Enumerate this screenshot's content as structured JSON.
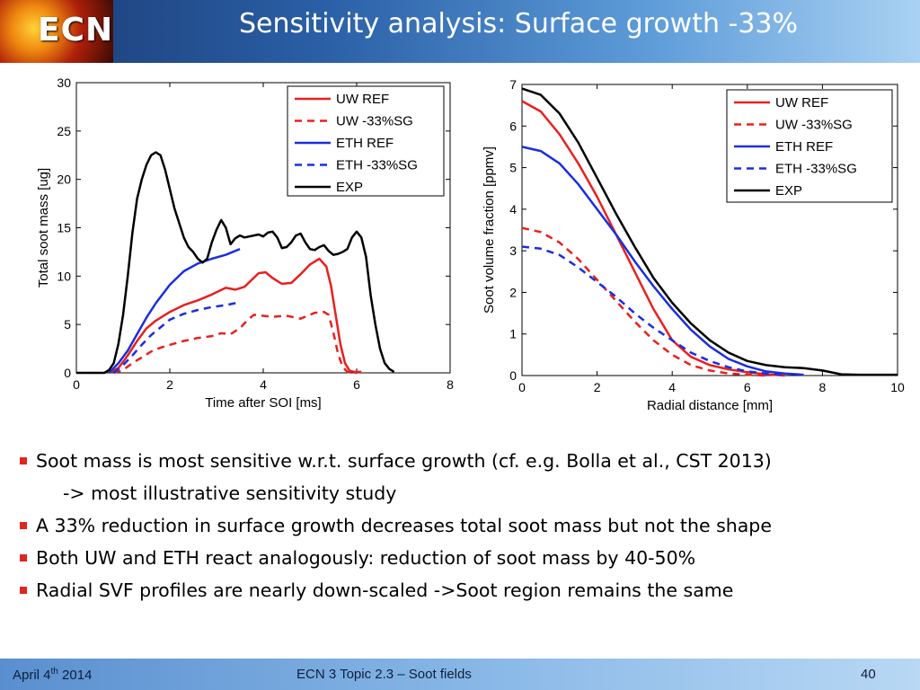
{
  "header": {
    "logo_text": "ECN",
    "title": "Sensitivity analysis: Surface growth -33%"
  },
  "bullets": [
    {
      "text": "Soot mass is most sensitive w.r.t. surface growth (cf. e.g. Bolla et al., CST 2013)",
      "marker": true
    },
    {
      "text": "-> most illustrative sensitivity study",
      "marker": false
    },
    {
      "text": "A 33% reduction in surface growth decreases total soot mass but not the shape",
      "marker": true
    },
    {
      "text": "Both UW and ETH react analogously: reduction of soot mass by 40-50%",
      "marker": true
    },
    {
      "text": "Radial SVF profiles are nearly down-scaled ->Soot region remains the same",
      "marker": true
    }
  ],
  "footer": {
    "date_prefix": "April 4",
    "date_sup": "th",
    "date_suffix": " 2014",
    "topic": "ECN 3 Topic 2.3 – Soot fields",
    "page": "40"
  },
  "colors": {
    "red": "#e8201f",
    "blue": "#1a2ee0",
    "black": "#000000",
    "bullet": "#e0261f"
  },
  "chart_data": [
    {
      "type": "line",
      "xlabel": "Time after SOI [ms]",
      "ylabel": "Total soot mass [ug]",
      "xlim": [
        0,
        8
      ],
      "ylim": [
        0,
        30
      ],
      "xticks": [
        0,
        2,
        4,
        6,
        8
      ],
      "yticks": [
        0,
        5,
        10,
        15,
        20,
        25,
        30
      ],
      "legend_position": "top-right",
      "series": [
        {
          "name": "UW REF",
          "color": "red",
          "dash": false,
          "x": [
            0.7,
            0.9,
            1.1,
            1.3,
            1.5,
            1.7,
            2.0,
            2.3,
            2.6,
            2.9,
            3.2,
            3.4,
            3.6,
            3.75,
            3.9,
            4.05,
            4.2,
            4.4,
            4.6,
            4.8,
            5.0,
            5.2,
            5.35,
            5.45,
            5.55,
            5.65,
            5.75,
            5.85,
            5.95,
            6.1
          ],
          "y": [
            0,
            0.5,
            1.8,
            3.3,
            4.6,
            5.4,
            6.3,
            7.0,
            7.5,
            8.1,
            8.8,
            8.6,
            8.9,
            9.6,
            10.3,
            10.4,
            9.8,
            9.2,
            9.3,
            10.2,
            11.2,
            11.8,
            11.0,
            9.0,
            6.0,
            3.0,
            1.0,
            0.2,
            0.1,
            0.1
          ]
        },
        {
          "name": "UW -33%SG",
          "color": "red",
          "dash": true,
          "x": [
            0.8,
            1.0,
            1.2,
            1.4,
            1.6,
            1.8,
            2.0,
            2.3,
            2.6,
            2.9,
            3.1,
            3.3,
            3.5,
            3.65,
            3.8,
            4.0,
            4.2,
            4.5,
            4.8,
            5.1,
            5.3,
            5.4,
            5.5,
            5.6,
            5.7,
            5.8,
            5.9,
            6.0
          ],
          "y": [
            0,
            0.3,
            1.0,
            1.6,
            2.2,
            2.6,
            2.9,
            3.3,
            3.6,
            3.8,
            4.1,
            4.0,
            4.6,
            5.4,
            6.0,
            5.9,
            5.8,
            5.9,
            5.6,
            6.2,
            6.3,
            6.0,
            4.2,
            2.0,
            0.6,
            0.1,
            0,
            0
          ]
        },
        {
          "name": "ETH REF",
          "color": "blue",
          "dash": false,
          "x": [
            0.7,
            0.9,
            1.1,
            1.3,
            1.5,
            1.7,
            2.0,
            2.3,
            2.6,
            2.9,
            3.2,
            3.5
          ],
          "y": [
            0,
            1.0,
            2.3,
            4.0,
            5.7,
            7.2,
            9.1,
            10.5,
            11.3,
            11.8,
            12.2,
            12.8
          ]
        },
        {
          "name": "ETH -33%SG",
          "color": "blue",
          "dash": true,
          "x": [
            0.8,
            1.0,
            1.2,
            1.4,
            1.6,
            1.8,
            2.0,
            2.3,
            2.6,
            2.9,
            3.2,
            3.5
          ],
          "y": [
            0,
            0.8,
            1.8,
            2.9,
            3.9,
            4.7,
            5.5,
            6.1,
            6.5,
            6.8,
            7.0,
            7.3
          ]
        },
        {
          "name": "EXP",
          "color": "black",
          "dash": false,
          "x": [
            0,
            0.6,
            0.7,
            0.8,
            0.9,
            1.0,
            1.1,
            1.2,
            1.3,
            1.4,
            1.5,
            1.6,
            1.7,
            1.8,
            1.9,
            2.0,
            2.1,
            2.2,
            2.3,
            2.4,
            2.5,
            2.6,
            2.7,
            2.8,
            2.9,
            3.0,
            3.1,
            3.2,
            3.3,
            3.4,
            3.5,
            3.6,
            3.7,
            3.8,
            3.9,
            4.0,
            4.1,
            4.2,
            4.3,
            4.4,
            4.5,
            4.6,
            4.7,
            4.8,
            4.9,
            5.0,
            5.1,
            5.2,
            5.3,
            5.4,
            5.5,
            5.6,
            5.7,
            5.8,
            5.9,
            6.0,
            6.1,
            6.2,
            6.3,
            6.4,
            6.5,
            6.6,
            6.7,
            6.8
          ],
          "y": [
            0,
            0,
            0.3,
            1.0,
            3.0,
            6.0,
            10.0,
            14.5,
            18.0,
            20.0,
            21.5,
            22.5,
            22.8,
            22.5,
            21.0,
            19.0,
            17.0,
            15.5,
            14.0,
            13.0,
            12.5,
            11.8,
            11.4,
            11.8,
            13.5,
            14.8,
            15.8,
            15.0,
            13.3,
            13.9,
            14.2,
            14.0,
            14.1,
            14.2,
            14.3,
            14.1,
            14.5,
            14.6,
            14.0,
            12.9,
            13.0,
            13.5,
            14.2,
            14.4,
            13.5,
            12.8,
            12.7,
            13.0,
            13.2,
            12.6,
            12.2,
            12.3,
            12.5,
            12.8,
            14.0,
            14.6,
            14.0,
            12.0,
            8.0,
            5.0,
            2.5,
            1.0,
            0.4,
            0.1
          ]
        }
      ]
    },
    {
      "type": "line",
      "xlabel": "Radial distance [mm]",
      "ylabel": "Soot volume fraction [ppmv]",
      "xlim": [
        0,
        10
      ],
      "ylim": [
        0,
        7
      ],
      "xticks": [
        0,
        2,
        4,
        6,
        8,
        10
      ],
      "yticks": [
        0,
        1,
        2,
        3,
        4,
        5,
        6,
        7
      ],
      "legend_position": "top-right",
      "series": [
        {
          "name": "UW REF",
          "color": "red",
          "dash": false,
          "x": [
            0,
            0.5,
            1.0,
            1.5,
            2.0,
            2.5,
            3.0,
            3.5,
            4.0,
            4.5,
            5.0,
            5.5,
            6.0,
            6.5,
            7.0
          ],
          "y": [
            6.6,
            6.35,
            5.8,
            5.1,
            4.3,
            3.4,
            2.5,
            1.6,
            0.85,
            0.45,
            0.25,
            0.15,
            0.08,
            0.03,
            0.0
          ]
        },
        {
          "name": "UW -33%SG",
          "color": "red",
          "dash": true,
          "x": [
            0,
            0.5,
            1.0,
            1.5,
            2.0,
            2.5,
            3.0,
            3.5,
            4.0,
            4.5,
            5.0,
            5.5,
            6.0,
            6.5
          ],
          "y": [
            3.55,
            3.45,
            3.2,
            2.8,
            2.3,
            1.8,
            1.3,
            0.85,
            0.5,
            0.25,
            0.12,
            0.05,
            0.02,
            0.0
          ]
        },
        {
          "name": "ETH REF",
          "color": "blue",
          "dash": false,
          "x": [
            0,
            0.5,
            1.0,
            1.5,
            2.0,
            2.5,
            3.0,
            3.5,
            4.0,
            4.5,
            5.0,
            5.5,
            6.0,
            6.5,
            7.0,
            7.5
          ],
          "y": [
            5.5,
            5.4,
            5.1,
            4.6,
            4.0,
            3.4,
            2.75,
            2.15,
            1.6,
            1.1,
            0.7,
            0.4,
            0.22,
            0.1,
            0.05,
            0.02
          ]
        },
        {
          "name": "ETH -33%SG",
          "color": "blue",
          "dash": true,
          "x": [
            0,
            0.5,
            1.0,
            1.5,
            2.0,
            2.5,
            3.0,
            3.5,
            4.0,
            4.5,
            5.0,
            5.5,
            6.0,
            6.5,
            7.0
          ],
          "y": [
            3.1,
            3.05,
            2.9,
            2.6,
            2.25,
            1.9,
            1.5,
            1.15,
            0.85,
            0.55,
            0.35,
            0.2,
            0.1,
            0.05,
            0.02
          ]
        },
        {
          "name": "EXP",
          "color": "black",
          "dash": false,
          "x": [
            0,
            0.5,
            1.0,
            1.5,
            2.0,
            2.5,
            3.0,
            3.5,
            4.0,
            4.5,
            5.0,
            5.5,
            6.0,
            6.5,
            7.0,
            7.5,
            8.0,
            8.5,
            9.0,
            9.5,
            10.0
          ],
          "y": [
            6.9,
            6.75,
            6.3,
            5.6,
            4.75,
            3.9,
            3.1,
            2.35,
            1.75,
            1.25,
            0.85,
            0.55,
            0.35,
            0.25,
            0.2,
            0.18,
            0.12,
            0.03,
            0.02,
            0.02,
            0.02
          ]
        }
      ]
    }
  ]
}
